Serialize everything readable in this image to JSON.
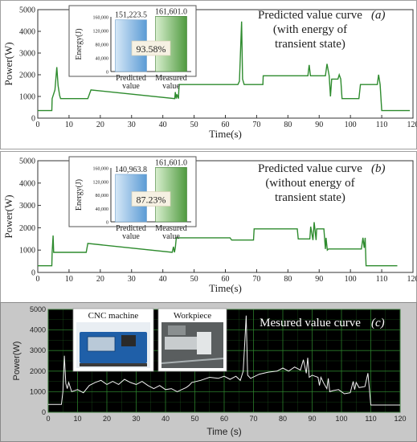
{
  "chart_data": [
    {
      "type": "line",
      "panel": "a",
      "title_lines": [
        "Predicted value curve",
        "(with energy of",
        "transient state)"
      ],
      "panel_label": "(a)",
      "xlabel": "Time(s)",
      "ylabel": "Power(W)",
      "xlim": [
        0,
        120
      ],
      "ylim": [
        0,
        5000
      ],
      "x_ticks": [
        0,
        10,
        20,
        30,
        40,
        50,
        60,
        70,
        80,
        90,
        100,
        110,
        120
      ],
      "y_ticks": [
        0,
        1000,
        2000,
        3000,
        4000,
        5000
      ],
      "line_color": "#2e8b2e",
      "x": [
        0,
        4.5,
        4.6,
        5.5,
        6.1,
        6.5,
        7.0,
        7.3,
        16.0,
        17.0,
        43.8,
        44.0,
        44.3,
        44.5,
        45.0,
        45.2,
        64.0,
        64.5,
        65.2,
        65.5,
        66.0,
        72.0,
        72.1,
        86.4,
        86.8,
        87.2,
        92.0,
        92.5,
        93.2,
        93.6,
        94.0,
        96.0,
        96.4,
        96.9,
        97.3,
        102.7,
        103.2,
        108.6,
        109.0,
        109.5,
        110.0,
        119.0
      ],
      "y": [
        350,
        350,
        900,
        1300,
        2350,
        1500,
        1050,
        900,
        900,
        1300,
        900,
        1200,
        900,
        1100,
        900,
        1550,
        1550,
        1700,
        4450,
        1800,
        1550,
        1550,
        1950,
        1950,
        2450,
        1950,
        1950,
        2500,
        1950,
        1000,
        1800,
        1800,
        2000,
        1800,
        900,
        900,
        1550,
        1550,
        2000,
        1550,
        350,
        350
      ],
      "inset": {
        "type": "bar",
        "categories": [
          "Predicted value",
          "Measured value"
        ],
        "values": [
          151223.5,
          161601.0
        ],
        "value_labels": [
          "151,223.5",
          "161,601.0"
        ],
        "ratio_label": "93.58%",
        "ylabel": "Energy(J)",
        "ylim": [
          0,
          160000
        ],
        "y_tick_labels": [
          "0",
          "40,000",
          "80,000",
          "120,000",
          "160,000"
        ],
        "colors": [
          "#5b9bd5",
          "#4f9a3f"
        ]
      }
    },
    {
      "type": "line",
      "panel": "b",
      "title_lines": [
        "Predicted value curve",
        "(without energy of",
        "transient state)"
      ],
      "panel_label": "(b)",
      "xlabel": "Time(s)",
      "ylabel": "Power(W)",
      "xlim": [
        0,
        120
      ],
      "ylim": [
        0,
        5000
      ],
      "x_ticks": [
        0,
        10,
        20,
        30,
        40,
        50,
        60,
        70,
        80,
        90,
        100,
        110,
        120
      ],
      "y_ticks": [
        0,
        1000,
        2000,
        3000,
        4000,
        5000
      ],
      "line_color": "#2e8b2e",
      "x": [
        0,
        4.5,
        4.6,
        4.9,
        5.1,
        5.5,
        15.5,
        16.0,
        43.0,
        43.4,
        43.7,
        44.0,
        44.3,
        61.5,
        62.0,
        69.0,
        69.2,
        83.0,
        83.3,
        87.0,
        87.3,
        88.0,
        88.4,
        89.0,
        89.2,
        91.5,
        92.0,
        92.2,
        92.6,
        93.0,
        103.5,
        104.0,
        104.4,
        104.7,
        105.0,
        115.0
      ],
      "y": [
        300,
        300,
        900,
        1650,
        900,
        900,
        900,
        1300,
        900,
        1150,
        900,
        1100,
        1550,
        1550,
        1450,
        1450,
        1950,
        1950,
        1500,
        1500,
        2050,
        1450,
        2250,
        1450,
        1950,
        1950,
        1050,
        1550,
        1000,
        1050,
        1050,
        1550,
        1100,
        1550,
        300,
        300
      ],
      "inset": {
        "type": "bar",
        "categories": [
          "Predicted value",
          "Measured value"
        ],
        "values": [
          140963.8,
          161601.0
        ],
        "value_labels": [
          "140,963.8",
          "161,601.0"
        ],
        "ratio_label": "87.23%",
        "ylabel": "Energy(J)",
        "ylim": [
          0,
          160000
        ],
        "y_tick_labels": [
          "0",
          "40,000",
          "80,000",
          "120,000",
          "160,000"
        ],
        "colors": [
          "#5b9bd5",
          "#4f9a3f"
        ]
      }
    },
    {
      "type": "line",
      "panel": "c",
      "title": "Mesured value curve",
      "panel_label": "(c)",
      "xlabel": "Time (s)",
      "ylabel": "Power(W)",
      "xlim": [
        0,
        120
      ],
      "ylim": [
        0,
        5000
      ],
      "x_ticks": [
        0,
        10,
        20,
        30,
        40,
        50,
        60,
        70,
        80,
        90,
        100,
        110,
        120
      ],
      "y_ticks": [
        0,
        1000,
        2000,
        3000,
        4000,
        5000
      ],
      "grid": true,
      "line_color": "#f2f2f2",
      "x": [
        0,
        4.5,
        5.0,
        5.5,
        6.0,
        6.5,
        7.0,
        8.0,
        10.0,
        12.0,
        14.0,
        16.0,
        18.0,
        20.0,
        22.0,
        24.0,
        26.0,
        28.0,
        30.0,
        32.0,
        34.0,
        36.0,
        38.0,
        40.0,
        42.0,
        44.0,
        45.5,
        47.0,
        48.0,
        49.0,
        52.0,
        55.0,
        58.0,
        60.0,
        62.0,
        64.0,
        65.5,
        66.5,
        67.0,
        67.5,
        68.0,
        69.0,
        72.0,
        75.0,
        78.0,
        80.0,
        82.0,
        84.0,
        86.0,
        87.0,
        88.0,
        88.5,
        89.0,
        90.0,
        91.0,
        92.0,
        92.5,
        93.0,
        94.0,
        95.0,
        95.5,
        96.0,
        97.0,
        99.0,
        101.0,
        103.0,
        104.0,
        104.5,
        105.0,
        106.0,
        108.0,
        109.0,
        109.5,
        110.0,
        111.0,
        120.0
      ],
      "y": [
        380,
        380,
        1000,
        2750,
        1400,
        1150,
        1450,
        1000,
        1100,
        950,
        1300,
        1450,
        1550,
        1350,
        1500,
        1350,
        1600,
        1450,
        1350,
        1500,
        1300,
        1150,
        1300,
        1100,
        1150,
        1000,
        1100,
        1200,
        1300,
        1450,
        1550,
        1700,
        1650,
        1750,
        1600,
        1750,
        1550,
        2000,
        3350,
        4700,
        1800,
        1650,
        1850,
        1950,
        2000,
        2150,
        2000,
        2200,
        2050,
        2550,
        1900,
        2650,
        1700,
        1800,
        1750,
        1700,
        1300,
        1700,
        1400,
        1150,
        1650,
        1000,
        1050,
        1100,
        900,
        950,
        1500,
        1100,
        1450,
        1200,
        1250,
        1900,
        1150,
        350,
        350,
        350
      ],
      "photos": [
        {
          "label": "CNC machine",
          "icon": "cnc-machine-photo"
        },
        {
          "label": "Workpiece",
          "icon": "workpiece-photo"
        }
      ],
      "colors": {
        "plot_bg": "#000000",
        "grid": "#2f8a2f",
        "frame": "#c8c8c8"
      }
    }
  ]
}
